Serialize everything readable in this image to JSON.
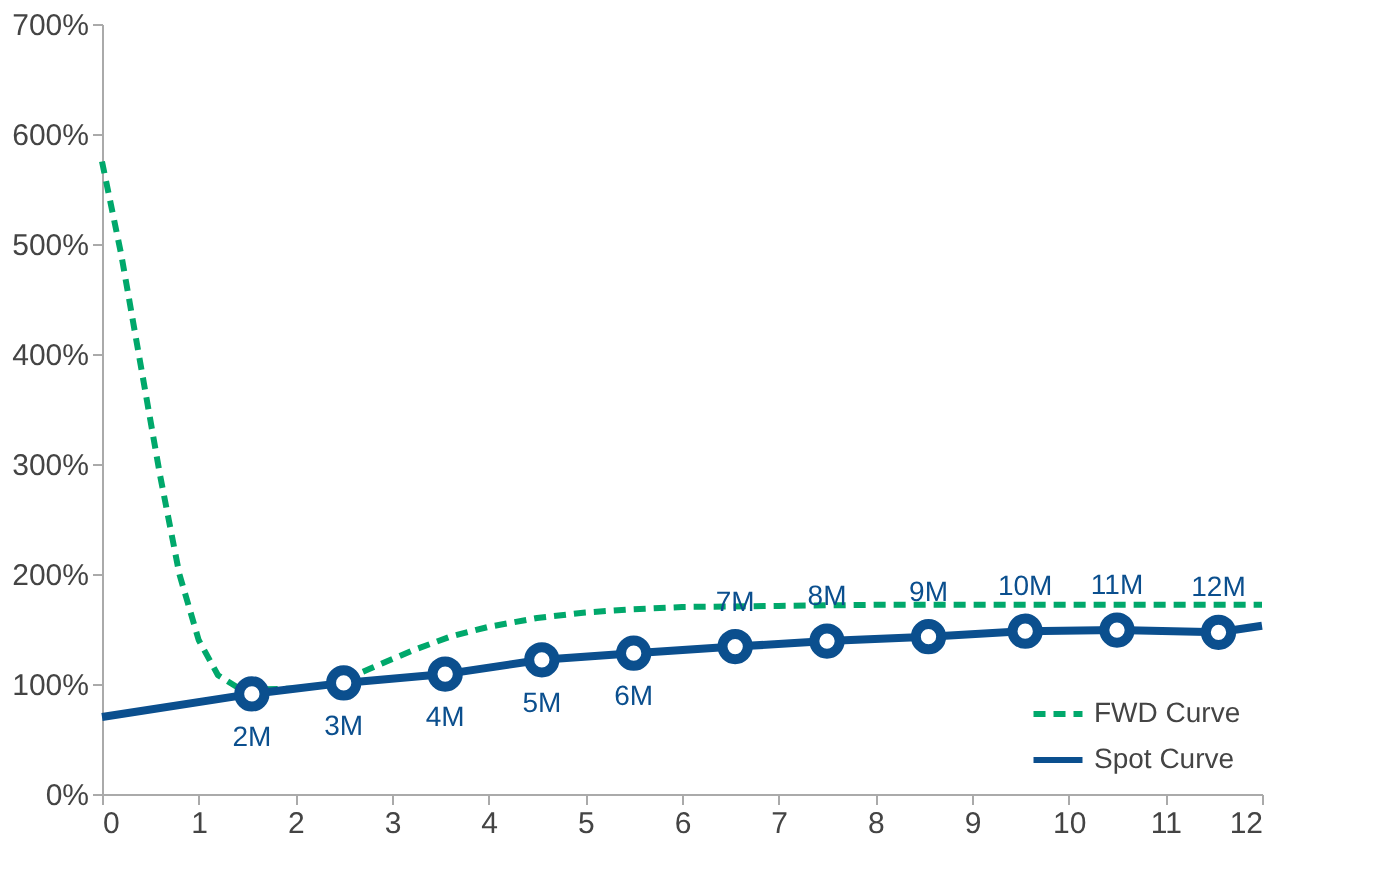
{
  "chart_data": {
    "type": "line",
    "xlim": [
      0,
      12
    ],
    "xticks": [
      0,
      1,
      2,
      3,
      4,
      5,
      6,
      7,
      8,
      9,
      10,
      11,
      12
    ],
    "ylim": [
      0,
      700
    ],
    "yticks": [
      {
        "value": 0,
        "label": "0%"
      },
      {
        "value": 100,
        "label": "100%"
      },
      {
        "value": 200,
        "label": "200%"
      },
      {
        "value": 300,
        "label": "300%"
      },
      {
        "value": 400,
        "label": "400%"
      },
      {
        "value": 500,
        "label": "500%"
      },
      {
        "value": 600,
        "label": "600%"
      },
      {
        "value": 700,
        "label": "700%"
      }
    ],
    "grid": false,
    "legend": "bottom right",
    "series": [
      {
        "name": "FWD Curve",
        "color": "#00a86b",
        "line_style": "dashed",
        "marker": "none",
        "x": [
          0,
          0.2,
          0.4,
          0.6,
          0.8,
          1.0,
          1.2,
          1.4,
          1.6,
          2.0,
          2.4,
          2.8,
          3.2,
          3.6,
          4.0,
          4.5,
          5,
          5.5,
          6,
          7,
          8,
          12
        ],
        "values": [
          575,
          490,
          390,
          290,
          200,
          140,
          108,
          97,
          95,
          96,
          100,
          115,
          130,
          143,
          152,
          160,
          165,
          168,
          170,
          171,
          172,
          172
        ]
      },
      {
        "name": "Spot Curve",
        "color": "#0b4f8e",
        "line_style": "solid",
        "marker": "none",
        "x": [
          0,
          1.55,
          2.5,
          3.55,
          4.55,
          5.5,
          6.55,
          7.5,
          8.55,
          9.55,
          10.5,
          11.55,
          12
        ],
        "values": [
          70,
          91,
          101,
          109,
          122,
          128,
          134,
          139,
          143,
          148,
          149,
          147,
          153
        ]
      },
      {
        "type": "scatter",
        "color": "#0b4f8e",
        "marker": "circle",
        "x": [
          1.55,
          2.5,
          3.55,
          4.55,
          5.5,
          6.55,
          7.5,
          8.55,
          9.55,
          10.5,
          11.55
        ],
        "values": [
          91,
          101,
          109,
          122,
          128,
          134,
          139,
          143,
          148,
          149,
          147
        ]
      }
    ],
    "annotations": [
      {
        "text": "2M",
        "x": 1.55,
        "y": 91
      },
      {
        "text": "3M",
        "x": 2.5,
        "y": 101
      },
      {
        "text": "4M",
        "x": 3.55,
        "y": 109
      },
      {
        "text": "5M",
        "x": 4.55,
        "y": 122
      },
      {
        "text": "6M",
        "x": 5.5,
        "y": 128
      },
      {
        "text": "7M",
        "x": 6.55,
        "y": 134
      },
      {
        "text": "8M",
        "x": 7.5,
        "y": 139
      },
      {
        "text": "9M",
        "x": 8.55,
        "y": 143
      },
      {
        "text": "10M",
        "x": 9.55,
        "y": 148
      },
      {
        "text": "11M",
        "x": 10.5,
        "y": 149
      },
      {
        "text": "12M",
        "x": 11.55,
        "y": 147
      }
    ]
  }
}
